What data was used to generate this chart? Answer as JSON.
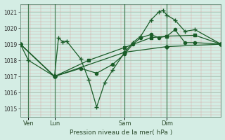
{
  "title": "Pression niveau de la mer( hPa )",
  "bg_color": "#d4ede4",
  "line_color": "#1a5c28",
  "grid_major_color": "#a8c8b8",
  "grid_minor_color": "#e8b8b8",
  "ylim": [
    1014.5,
    1021.5
  ],
  "yticks": [
    1015,
    1016,
    1017,
    1018,
    1019,
    1020,
    1021
  ],
  "day_labels": [
    "Ven",
    "Lun",
    "Sam",
    "Dim"
  ],
  "day_positions": [
    0.04,
    0.17,
    0.52,
    0.73
  ],
  "xlim": [
    0,
    1
  ],
  "series": [
    {
      "x": [
        0.0,
        0.04,
        0.17,
        0.19,
        0.21,
        0.23,
        0.3,
        0.34,
        0.38,
        0.42,
        0.46,
        0.52,
        0.56,
        0.6,
        0.65,
        0.69,
        0.71,
        0.73,
        0.77,
        0.82,
        0.87,
        1.0
      ],
      "y": [
        1019.0,
        1018.0,
        1017.0,
        1019.4,
        1019.15,
        1019.2,
        1018.1,
        1016.8,
        1015.1,
        1016.6,
        1017.4,
        1018.5,
        1019.1,
        1019.5,
        1020.5,
        1021.0,
        1021.1,
        1020.8,
        1020.5,
        1019.8,
        1019.9,
        1019.0
      ],
      "marker": "+"
    },
    {
      "x": [
        0.0,
        0.17,
        0.52,
        0.73,
        1.0
      ],
      "y": [
        1019.0,
        1017.0,
        1018.5,
        1018.85,
        1019.0
      ],
      "marker": "D"
    },
    {
      "x": [
        0.0,
        0.17,
        0.34,
        0.52,
        0.65,
        0.73,
        0.87,
        1.0
      ],
      "y": [
        1019.0,
        1017.0,
        1018.0,
        1018.8,
        1019.4,
        1019.5,
        1019.55,
        1019.0
      ],
      "marker": "s"
    },
    {
      "x": [
        0.0,
        0.17,
        0.3,
        0.38,
        0.46,
        0.52,
        0.56,
        0.6,
        0.65,
        0.69,
        0.73,
        0.77,
        0.82,
        0.87,
        1.0
      ],
      "y": [
        1019.0,
        1017.0,
        1017.5,
        1017.2,
        1017.75,
        1018.4,
        1019.0,
        1019.4,
        1019.6,
        1019.4,
        1019.5,
        1019.9,
        1019.1,
        1019.1,
        1019.0
      ],
      "marker": "o"
    }
  ]
}
